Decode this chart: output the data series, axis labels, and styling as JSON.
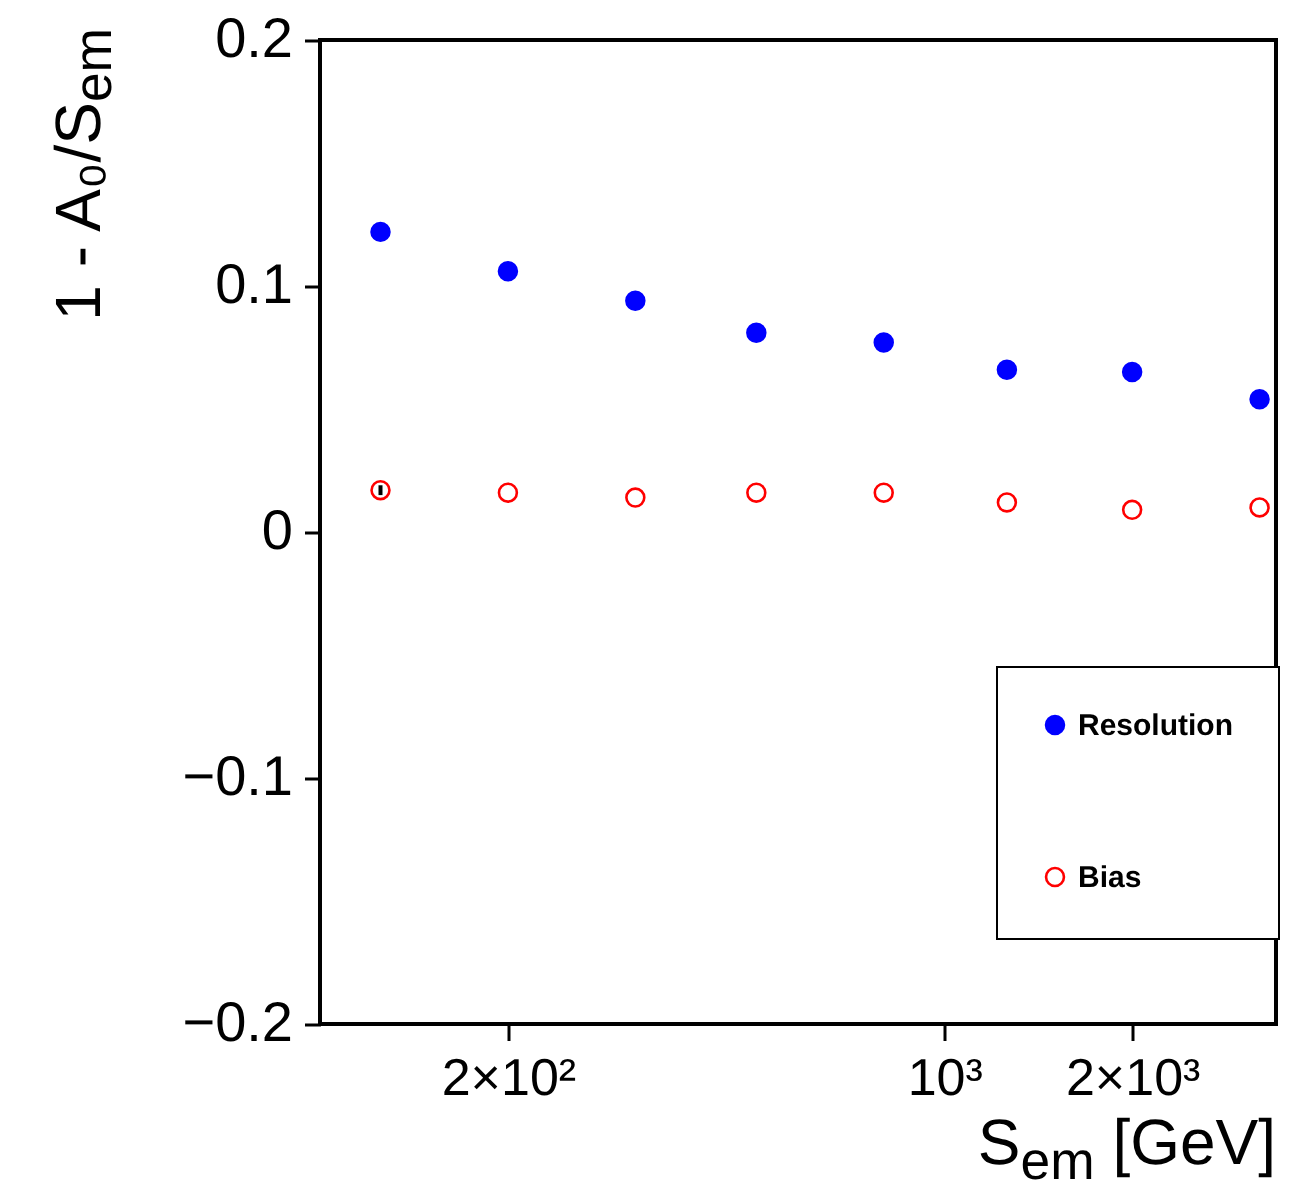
{
  "chart_data": {
    "type": "scatter",
    "xlabel": "S$_{em}$ [GeV]",
    "ylabel": "1 - A₀/S$_{em}$",
    "log": "x",
    "marker": "circle",
    "legend": "bottom right",
    "grid": false,
    "x": [
      125,
      200,
      320,
      500,
      800,
      1260,
      2000,
      3200
    ],
    "series": [
      {
        "name": "Resolution",
        "color": "#0000ff",
        "values": [
          0.122,
          0.106,
          0.094,
          0.081,
          0.077,
          0.066,
          0.065,
          0.054
        ]
      },
      {
        "name": "Bias",
        "color": "#ff0000",
        "values": [
          0.017,
          0.016,
          0.014,
          0.016,
          0.016,
          0.012,
          0.009,
          0.01
        ],
        "errors": [
          0.002,
          null,
          null,
          null,
          null,
          null,
          null,
          null
        ]
      }
    ],
    "xlim": [
      100,
      3400
    ],
    "xticks": [
      {
        "value": 200,
        "label": "2×10²"
      },
      {
        "value": 1000,
        "label": "10³"
      },
      {
        "value": 2000,
        "label": "2×10³"
      }
    ],
    "ylim": [
      -0.2,
      0.2
    ],
    "yticks": [
      {
        "value": -0.2,
        "label": "−0.2"
      },
      {
        "value": -0.1,
        "label": "−0.1"
      },
      0,
      0.1,
      0.2
    ]
  }
}
